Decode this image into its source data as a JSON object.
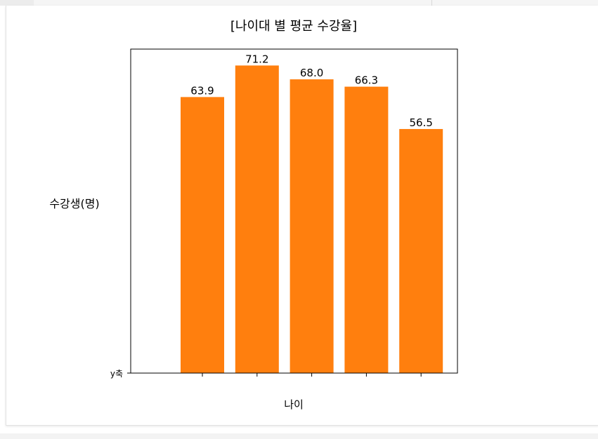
{
  "chart_data": {
    "type": "bar",
    "title": "[나이대 별 평균 수강율]",
    "xlabel": "나이",
    "ylabel": "수강생(명)",
    "ytick_labels": [
      "y축"
    ],
    "categories": [
      "",
      "",
      "",
      "",
      ""
    ],
    "values": [
      63.9,
      71.2,
      68.0,
      66.3,
      56.5
    ],
    "value_labels": [
      "63.9",
      "71.2",
      "68.0",
      "66.3",
      "56.5"
    ],
    "ylim": [
      0,
      75
    ],
    "bar_color": "#ff7f0e",
    "grid": false
  }
}
